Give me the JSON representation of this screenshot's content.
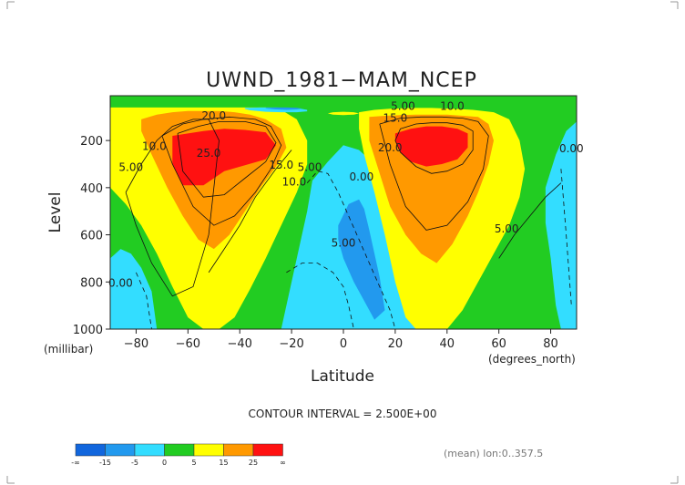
{
  "chart_data": {
    "type": "heatmap",
    "title": "UWND_1981−MAM_NCEP",
    "xlabel": "Latitude",
    "ylabel": "Level",
    "xunit": "(degrees_north)",
    "yunit": "(millibar)",
    "xlim": [
      -90,
      90
    ],
    "ylim": [
      1000,
      10
    ],
    "x_ticks": [
      -80,
      -60,
      -40,
      -20,
      0,
      20,
      40,
      60,
      80
    ],
    "y_ticks": [
      200,
      400,
      600,
      800,
      1000
    ],
    "contour_interval_text": "CONTOUR INTERVAL = 2.500E+00",
    "footer_text": "(mean) lon:0..357.5",
    "colorbar": {
      "boundaries": [
        "-∞",
        "-15",
        "-5",
        "0",
        "5",
        "15",
        "25",
        "∞"
      ],
      "colors": [
        "#1166dd",
        "#2299ee",
        "#33ddff",
        "#22cc22",
        "#ffff00",
        "#ff9900",
        "#ff1111"
      ]
    },
    "contour_labels": [
      {
        "text": "20.0",
        "lat": -50,
        "lev": 110
      },
      {
        "text": "10.0",
        "lat": -73,
        "lev": 240
      },
      {
        "text": "5.00",
        "lat": -82,
        "lev": 330
      },
      {
        "text": "25.0",
        "lat": -52,
        "lev": 270
      },
      {
        "text": "15.0",
        "lat": -24,
        "lev": 320
      },
      {
        "text": "10.0",
        "lat": -19,
        "lev": 390
      },
      {
        "text": "5.00",
        "lat": -13,
        "lev": 330
      },
      {
        "text": "5.00",
        "lat": 23,
        "lev": 70
      },
      {
        "text": "15.0",
        "lat": 20,
        "lev": 120
      },
      {
        "text": "10.0",
        "lat": 42,
        "lev": 70
      },
      {
        "text": "20.0",
        "lat": 18,
        "lev": 245
      },
      {
        "text": "0.00",
        "lat": 7,
        "lev": 370
      },
      {
        "text": "5.00",
        "lat": 0,
        "lev": 650
      },
      {
        "text": "5.00",
        "lat": 63,
        "lev": 590
      },
      {
        "text": "0.00",
        "lat": 88,
        "lev": 250
      },
      {
        "text": "0.00",
        "lat": -86,
        "lev": 820
      }
    ],
    "shading_regions": [
      {
        "class": "5..15",
        "color": "#ffff00",
        "lat": [
          -90,
          -88,
          -84,
          -78,
          -72,
          -66,
          -60,
          -54,
          -48,
          -42,
          -36,
          -30,
          -24,
          -18,
          -14,
          -14,
          -18,
          -24,
          -30,
          -36,
          -42,
          -48,
          -54,
          -60,
          -66,
          -72,
          -78,
          -84,
          -90
        ],
        "lev": [
          60,
          60,
          60,
          60,
          60,
          60,
          60,
          60,
          60,
          60,
          60,
          60,
          70,
          110,
          200,
          300,
          420,
          560,
          700,
          830,
          950,
          1000,
          1000,
          950,
          820,
          680,
          560,
          470,
          400
        ]
      },
      {
        "class": "15..25",
        "color": "#ff9900",
        "lat": [
          -78,
          -72,
          -66,
          -60,
          -54,
          -48,
          -42,
          -36,
          -30,
          -24,
          -22,
          -26,
          -32,
          -38,
          -44,
          -50,
          -56,
          -62,
          -68,
          -74,
          -78
        ],
        "lev": [
          110,
          90,
          80,
          75,
          75,
          75,
          80,
          90,
          110,
          150,
          230,
          310,
          400,
          500,
          600,
          660,
          620,
          520,
          400,
          260,
          160
        ]
      },
      {
        "class": ">25",
        "color": "#ff1111",
        "lat": [
          -66,
          -60,
          -54,
          -46,
          -38,
          -30,
          -26,
          -30,
          -38,
          -46,
          -54,
          -62,
          -66
        ],
        "lev": [
          180,
          170,
          160,
          150,
          155,
          165,
          220,
          280,
          305,
          330,
          390,
          390,
          300
        ]
      },
      {
        "class": "-5..0",
        "color": "#33ddff",
        "lat": [
          -12,
          -6,
          0,
          6,
          12,
          18,
          24,
          28,
          30,
          32,
          34,
          30,
          22,
          12,
          0,
          -8,
          -14,
          -20,
          -24,
          -18,
          -14
        ],
        "lev": [
          370,
          290,
          220,
          240,
          300,
          380,
          480,
          580,
          680,
          800,
          1000,
          1000,
          1000,
          1000,
          1000,
          1000,
          1000,
          1000,
          1000,
          700,
          500
        ]
      },
      {
        "class": "-15..-5",
        "color": "#2299ee",
        "lat": [
          -2,
          2,
          6,
          8,
          10,
          12,
          14,
          16,
          12,
          8,
          4,
          0,
          -2
        ],
        "lev": [
          560,
          470,
          450,
          490,
          580,
          680,
          780,
          920,
          960,
          880,
          800,
          700,
          620
        ]
      },
      {
        "class": "5..15",
        "color": "#ffff00",
        "lat": [
          6,
          12,
          18,
          26,
          34,
          42,
          50,
          58,
          64,
          68,
          70,
          68,
          64,
          58,
          52,
          46,
          40,
          34,
          28,
          24,
          20,
          16,
          12,
          8,
          6,
          6
        ],
        "lev": [
          80,
          70,
          65,
          62,
          62,
          65,
          70,
          80,
          110,
          200,
          320,
          440,
          560,
          680,
          800,
          920,
          1000,
          1000,
          1000,
          950,
          800,
          600,
          420,
          260,
          150,
          100
        ]
      },
      {
        "class": "15..25",
        "color": "#ff9900",
        "lat": [
          10,
          16,
          22,
          28,
          34,
          40,
          46,
          52,
          56,
          58,
          56,
          52,
          48,
          42,
          36,
          30,
          24,
          18,
          14,
          10
        ],
        "lev": [
          100,
          95,
          92,
          90,
          90,
          90,
          95,
          100,
          130,
          200,
          300,
          420,
          520,
          640,
          720,
          680,
          600,
          480,
          340,
          200
        ]
      },
      {
        "class": ">25",
        "color": "#ff1111",
        "lat": [
          20,
          26,
          32,
          38,
          44,
          48,
          48,
          44,
          38,
          32,
          26,
          22,
          20
        ],
        "lev": [
          170,
          150,
          140,
          140,
          150,
          170,
          230,
          280,
          300,
          310,
          290,
          250,
          200
        ]
      },
      {
        "class": "-5..0",
        "color": "#33ddff",
        "lat": [
          -90,
          -86,
          -82,
          -78,
          -74,
          -72,
          -74,
          -78,
          -82,
          -86,
          -90
        ],
        "lev": [
          700,
          660,
          680,
          740,
          840,
          1000,
          1000,
          1000,
          1000,
          1000,
          1000
        ]
      },
      {
        "class": "-5..0",
        "color": "#33ddff",
        "lat": [
          78,
          82,
          86,
          90,
          90,
          86,
          84,
          82,
          80,
          78
        ],
        "lev": [
          400,
          260,
          160,
          120,
          1000,
          1000,
          1000,
          900,
          700,
          550
        ]
      },
      {
        "class": "-5..0",
        "color": "#33ddff",
        "lat": [
          -38,
          -32,
          -26,
          -20,
          -16,
          -14,
          -14,
          -18,
          -24,
          -30,
          -36,
          -38
        ],
        "lev": [
          62,
          60,
          60,
          62,
          66,
          70,
          76,
          80,
          80,
          78,
          72,
          66
        ]
      },
      {
        "class": "-15..-5",
        "color": "#2299ee",
        "lat": [
          -30,
          -26,
          -22,
          -18,
          -16,
          -18,
          -22,
          -26,
          -30
        ],
        "lev": [
          62,
          60,
          60,
          61,
          64,
          68,
          70,
          68,
          64
        ]
      },
      {
        "class": "5..15",
        "color": "#ffff00",
        "lat": [
          -4,
          0,
          4,
          6,
          4,
          0,
          -4,
          -6,
          -4
        ],
        "lev": [
          80,
          78,
          80,
          85,
          90,
          92,
          90,
          85,
          80
        ]
      }
    ],
    "contour_lines": [
      {
        "style": "solid",
        "lat": [
          -84,
          -78,
          -72,
          -66,
          -58,
          -52,
          -48,
          -52,
          -58,
          -66,
          -74,
          -80,
          -84
        ],
        "lev": [
          420,
          300,
          200,
          140,
          110,
          110,
          200,
          600,
          820,
          860,
          720,
          560,
          420
        ]
      },
      {
        "style": "solid",
        "lat": [
          -70,
          -62,
          -54,
          -44,
          -34,
          -28,
          -24,
          -28,
          -34,
          -42,
          -50,
          -58,
          -66,
          -70
        ],
        "lev": [
          180,
          130,
          110,
          100,
          110,
          140,
          220,
          320,
          420,
          520,
          560,
          480,
          300,
          180
        ]
      },
      {
        "style": "solid",
        "lat": [
          -64,
          -56,
          -48,
          -38,
          -30,
          -26,
          -30,
          -38,
          -46,
          -54,
          -62,
          -64
        ],
        "lev": [
          170,
          140,
          120,
          120,
          140,
          210,
          290,
          360,
          430,
          440,
          330,
          170
        ]
      },
      {
        "style": "solid",
        "lat": [
          22,
          28,
          34,
          40,
          46,
          50,
          50,
          46,
          40,
          34,
          28,
          22,
          20,
          22
        ],
        "lev": [
          150,
          130,
          125,
          125,
          135,
          160,
          240,
          300,
          330,
          340,
          310,
          250,
          200,
          150
        ]
      },
      {
        "style": "solid",
        "lat": [
          14,
          22,
          30,
          38,
          46,
          52,
          56,
          54,
          48,
          40,
          32,
          24,
          18,
          14
        ],
        "lev": [
          130,
          105,
          100,
          100,
          105,
          120,
          180,
          320,
          460,
          560,
          580,
          480,
          300,
          130
        ]
      },
      {
        "style": "solid",
        "lat": [
          60,
          66,
          72,
          78,
          84
        ],
        "lev": [
          700,
          600,
          520,
          440,
          380
        ]
      },
      {
        "style": "solid",
        "lat": [
          -20,
          -26,
          -34,
          -40,
          -46,
          -52
        ],
        "lev": [
          240,
          320,
          440,
          560,
          660,
          760
        ]
      },
      {
        "style": "dashed",
        "lat": [
          -14,
          -10,
          -6,
          -2,
          2,
          6,
          10,
          14,
          18,
          20
        ],
        "lev": [
          380,
          330,
          340,
          420,
          520,
          620,
          720,
          820,
          920,
          1000
        ]
      },
      {
        "style": "dashed",
        "lat": [
          -22,
          -16,
          -10,
          -4,
          0,
          2,
          4
        ],
        "lev": [
          760,
          720,
          720,
          760,
          820,
          900,
          1000
        ]
      },
      {
        "style": "dashed",
        "lat": [
          84,
          86,
          88
        ],
        "lev": [
          320,
          600,
          900
        ]
      },
      {
        "style": "dashed",
        "lat": [
          -80,
          -76,
          -74
        ],
        "lev": [
          760,
          860,
          1000
        ]
      }
    ]
  }
}
